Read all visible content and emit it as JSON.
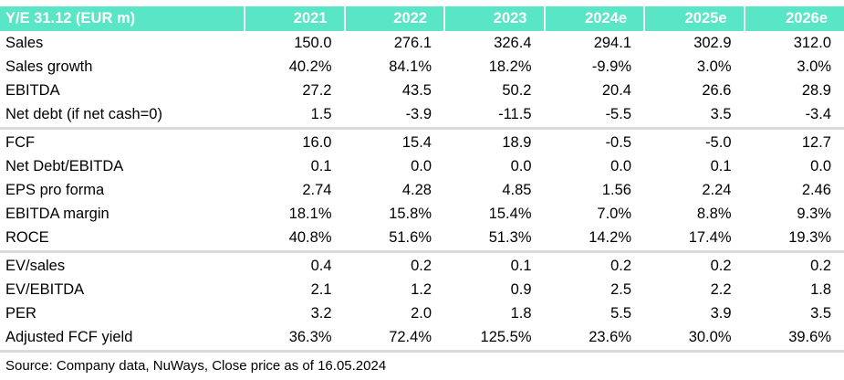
{
  "table": {
    "title": "Y/E 31.12 (EUR m)",
    "years": [
      "2021",
      "2022",
      "2023",
      "2024e",
      "2025e",
      "2026e"
    ],
    "sections": [
      {
        "rows": [
          {
            "label": "Sales",
            "values": [
              "150.0",
              "276.1",
              "326.4",
              "294.1",
              "302.9",
              "312.0"
            ]
          },
          {
            "label": "Sales growth",
            "values": [
              "40.2%",
              "84.1%",
              "18.2%",
              "-9.9%",
              "3.0%",
              "3.0%"
            ]
          },
          {
            "label": "EBITDA",
            "values": [
              "27.2",
              "43.5",
              "50.2",
              "20.4",
              "26.6",
              "28.9"
            ]
          },
          {
            "label": "Net debt (if net cash=0)",
            "values": [
              "1.5",
              "-3.9",
              "-11.5",
              "-5.5",
              "3.5",
              "-3.4"
            ]
          }
        ]
      },
      {
        "rows": [
          {
            "label": "FCF",
            "values": [
              "16.0",
              "15.4",
              "18.9",
              "-0.5",
              "-5.0",
              "12.7"
            ]
          },
          {
            "label": "Net Debt/EBITDA",
            "values": [
              "0.1",
              "0.0",
              "0.0",
              "0.0",
              "0.1",
              "0.0"
            ]
          },
          {
            "label": "EPS pro forma",
            "values": [
              "2.74",
              "4.28",
              "4.85",
              "1.56",
              "2.24",
              "2.46"
            ]
          },
          {
            "label": "EBITDA margin",
            "values": [
              "18.1%",
              "15.8%",
              "15.4%",
              "7.0%",
              "8.8%",
              "9.3%"
            ]
          },
          {
            "label": "ROCE",
            "values": [
              "40.8%",
              "51.6%",
              "51.3%",
              "14.2%",
              "17.4%",
              "19.3%"
            ]
          }
        ]
      },
      {
        "rows": [
          {
            "label": "EV/sales",
            "values": [
              "0.4",
              "0.2",
              "0.1",
              "0.2",
              "0.2",
              "0.2"
            ]
          },
          {
            "label": "EV/EBITDA",
            "values": [
              "2.1",
              "1.2",
              "0.9",
              "2.5",
              "2.2",
              "1.8"
            ]
          },
          {
            "label": "PER",
            "values": [
              "3.2",
              "2.0",
              "1.8",
              "5.5",
              "3.9",
              "3.5"
            ]
          },
          {
            "label": "Adjusted FCF yield",
            "values": [
              "36.3%",
              "72.4%",
              "125.5%",
              "23.6%",
              "30.0%",
              "39.6%"
            ]
          }
        ]
      }
    ]
  },
  "footer": {
    "source": "Source: Company data, NuWays, Close price as of 16.05.2024"
  },
  "colors": {
    "header_bg": "#58E6C7",
    "header_text": "#FFFFFF",
    "separator": "#D9D9D9"
  }
}
